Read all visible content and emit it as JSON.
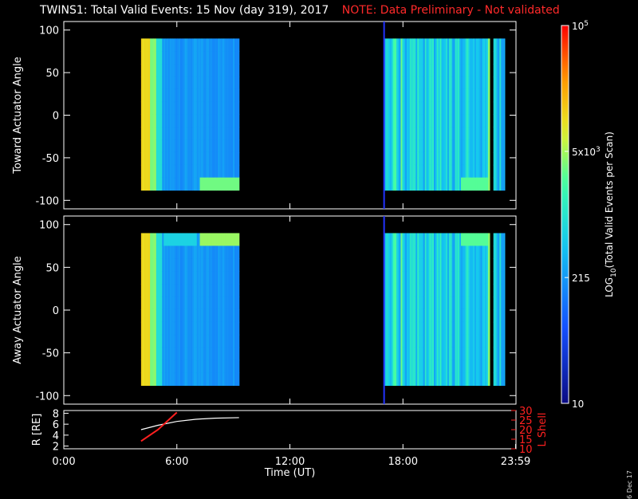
{
  "title": {
    "main": "TWINS1: Total Valid Events: 15 Nov (day 319), 2017",
    "note": "NOTE: Data Preliminary - Not validated"
  },
  "stamp": "6 Dec 17",
  "colors": {
    "background": "#000000",
    "axes": "#ffffff",
    "note": "#ff2a2a",
    "marker": "#2233ff",
    "lshell": "#ff2020"
  },
  "chart_data": [
    {
      "type": "heatmap",
      "ylabel": "Toward Actuator Angle",
      "ylim": [
        -110,
        110
      ],
      "yticks": [
        "100",
        "50",
        "0",
        "-50",
        "-100"
      ],
      "yticks_values": [
        100,
        50,
        0,
        -50,
        -100
      ],
      "xlim_hours": [
        0,
        24
      ],
      "data_angle_range": [
        -88,
        90
      ],
      "segments": [
        {
          "start_hour": 4.1,
          "end_hour": 9.3,
          "dominant_level": "high (orange/yellow) near 4–4.9 h, fading to cyan/blue"
        },
        {
          "start_hour": 17.0,
          "end_hour": 22.6,
          "dominant_level": "cyan/blue, high near -85 deg at 22 h"
        },
        {
          "start_hour": 22.8,
          "end_hour": 23.4,
          "dominant_level": "blue"
        }
      ],
      "vertical_marker_hour": 17.0
    },
    {
      "type": "heatmap",
      "ylabel": "Away Actuator Angle",
      "ylim": [
        -110,
        110
      ],
      "yticks": [
        "100",
        "50",
        "0",
        "-50",
        "-100"
      ],
      "yticks_values": [
        100,
        50,
        0,
        -50,
        -100
      ],
      "xlim_hours": [
        0,
        24
      ],
      "data_angle_range": [
        -88,
        90
      ],
      "segments": [
        {
          "start_hour": 4.1,
          "end_hour": 9.3,
          "dominant_level": "high (orange) near 4–4.9 h, fading to cyan/blue"
        },
        {
          "start_hour": 17.0,
          "end_hour": 22.6,
          "dominant_level": "cyan/blue, high near +85 deg at 22 h"
        },
        {
          "start_hour": 22.8,
          "end_hour": 23.4,
          "dominant_level": "cyan/blue"
        }
      ],
      "vertical_marker_hour": 17.0
    },
    {
      "type": "line",
      "xlabel": "Time (UT)",
      "ylabel": "R [RE]",
      "ylabel_right": "L Shell",
      "x_ticks": [
        "0:00",
        "6:00",
        "12:00",
        "18:00",
        "23:59"
      ],
      "x_ticks_hours": [
        0,
        6,
        12,
        18,
        23.98
      ],
      "ylim": [
        1.5,
        8.5
      ],
      "yticks": [
        "8",
        "6",
        "4",
        "2"
      ],
      "yticks_values": [
        8,
        6,
        4,
        2
      ],
      "ylim_right": [
        10,
        30
      ],
      "yticks_right": [
        "30",
        "25",
        "20",
        "15",
        "10"
      ],
      "yticks_right_values": [
        30,
        25,
        20,
        15,
        10
      ],
      "series": [
        {
          "axis": "left",
          "x_hours": [
            4.1,
            5.0,
            6.0,
            7.0,
            8.0,
            9.3
          ],
          "values": [
            5.0,
            5.8,
            6.5,
            6.9,
            7.1,
            7.2
          ]
        },
        {
          "axis": "right",
          "x_hours": [
            4.1,
            5.0,
            6.0
          ],
          "values": [
            14,
            20,
            29
          ]
        }
      ]
    }
  ],
  "colorbar": {
    "label": "LOG10(Total Valid Events per Scan)",
    "ticks": [
      "10",
      "215",
      "5x10^3",
      "10^5"
    ],
    "tick_fractions": [
      0,
      0.333,
      0.667,
      1.0
    ]
  }
}
